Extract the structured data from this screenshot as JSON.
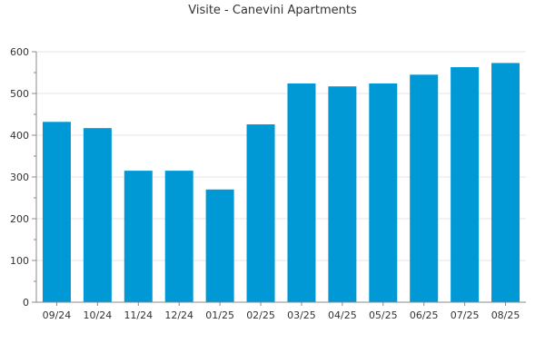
{
  "chart_data": {
    "type": "bar",
    "title": "Visite - Canevini Apartments",
    "xlabel": "",
    "ylabel": "",
    "categories": [
      "09/24",
      "10/24",
      "11/24",
      "12/24",
      "01/25",
      "02/25",
      "03/25",
      "04/25",
      "05/25",
      "06/25",
      "07/25",
      "08/25"
    ],
    "values": [
      432,
      417,
      315,
      315,
      270,
      426,
      524,
      517,
      524,
      545,
      563,
      573
    ],
    "ylim": [
      0,
      600
    ],
    "yticks": [
      0,
      100,
      200,
      300,
      400,
      500,
      600
    ],
    "grid": true,
    "legend": "none",
    "bar_color": "#0099d6"
  }
}
